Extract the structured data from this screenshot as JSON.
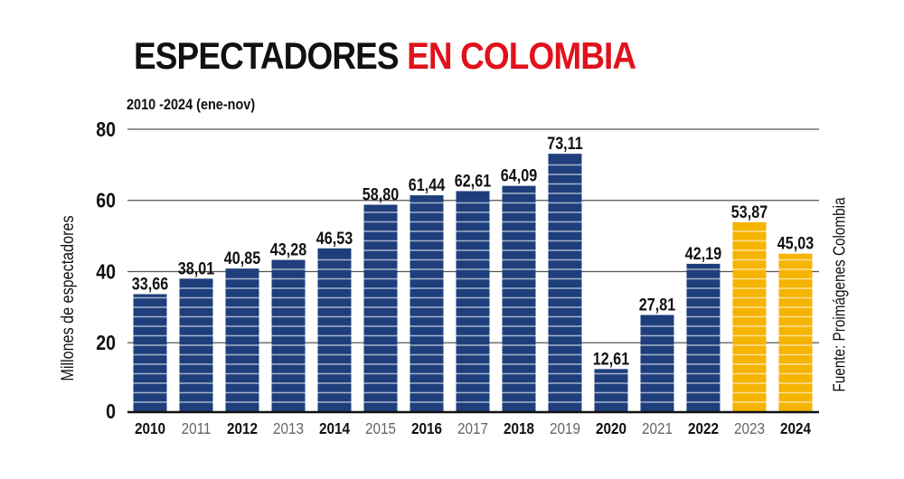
{
  "title_part1": "ESPECTADORES",
  "title_part2": "EN COLOMBIA",
  "subtitle": "2010 -2024 (ene-nov)",
  "source": "Fuente: Proimágenes Colombia",
  "chart_data": {
    "type": "bar",
    "title": "ESPECTADORES EN COLOMBIA",
    "subtitle": "2010 -2024 (ene-nov)",
    "xlabel": "",
    "ylabel": "Millones de espectadores",
    "ylim": [
      0,
      80
    ],
    "yticks": [
      0,
      20,
      40,
      60,
      80
    ],
    "grid": true,
    "categories": [
      "2010",
      "2011",
      "2012",
      "2013",
      "2014",
      "2015",
      "2016",
      "2017",
      "2018",
      "2019",
      "2020",
      "2021",
      "2022",
      "2023",
      "2024"
    ],
    "values": [
      33.66,
      38.01,
      40.85,
      43.28,
      46.53,
      58.8,
      61.44,
      62.61,
      64.09,
      73.11,
      12.61,
      27.81,
      42.19,
      53.87,
      45.03
    ],
    "value_labels": [
      "33,66",
      "38,01",
      "40,85",
      "43,28",
      "46,53",
      "58,80",
      "61,44",
      "62,61",
      "64,09",
      "73,11",
      "12,61",
      "27,81",
      "42,19",
      "53,87",
      "45,03"
    ],
    "colors": {
      "default": "#1e3f7c",
      "highlight": "#f5b400",
      "title_accent": "#e0121b"
    },
    "highlighted": [
      "2023",
      "2024"
    ]
  }
}
